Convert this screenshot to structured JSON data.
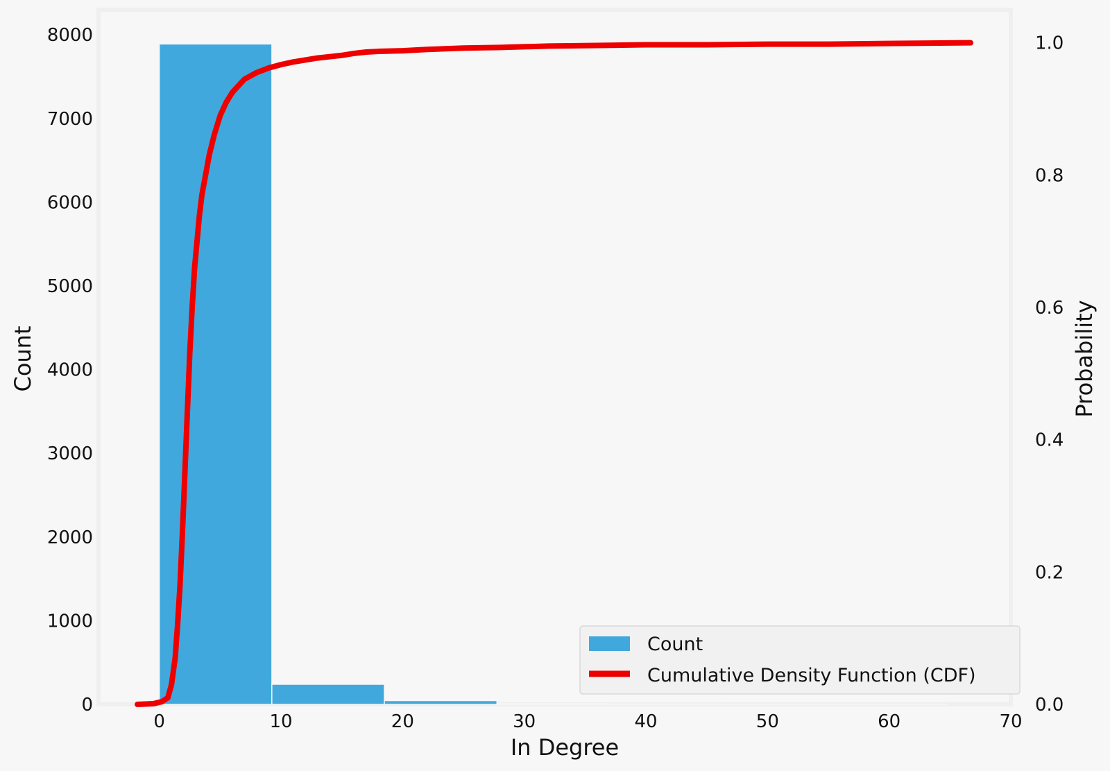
{
  "chart_data": {
    "type": "bar",
    "xlabel": "In Degree",
    "ylabel": "Count",
    "y2label": "Probability",
    "xlim": [
      -5,
      70
    ],
    "ylim": [
      0,
      8300
    ],
    "y2lim": [
      0,
      1.05
    ],
    "x_ticks": [
      0,
      10,
      20,
      30,
      40,
      50,
      60,
      70
    ],
    "y_ticks": [
      0,
      1000,
      2000,
      3000,
      4000,
      5000,
      6000,
      7000,
      8000
    ],
    "y2_ticks": [
      0.0,
      0.2,
      0.4,
      0.6,
      0.8,
      1.0
    ],
    "x_tick_labels": [
      "0",
      "10",
      "20",
      "30",
      "40",
      "50",
      "60",
      "70"
    ],
    "y_tick_labels": [
      "0",
      "1000",
      "2000",
      "3000",
      "4000",
      "5000",
      "6000",
      "7000",
      "8000"
    ],
    "y2_tick_labels": [
      "0.0",
      "0.2",
      "0.4",
      "0.6",
      "0.8",
      "1.0"
    ],
    "grid": false,
    "legend": "bottom-right",
    "series": [
      {
        "name": "Count",
        "kind": "histogram",
        "color": "#41a8dd",
        "bins": [
          {
            "x0": 0,
            "x1": 9.25,
            "value": 7890
          },
          {
            "x0": 9.25,
            "x1": 18.5,
            "value": 240
          },
          {
            "x0": 18.5,
            "x1": 27.75,
            "value": 45
          },
          {
            "x0": 27.75,
            "x1": 37,
            "value": 8
          },
          {
            "x0": 37,
            "x1": 46.25,
            "value": 3
          },
          {
            "x0": 46.25,
            "x1": 55.5,
            "value": 1
          },
          {
            "x0": 55.5,
            "x1": 64.75,
            "value": 1
          }
        ]
      },
      {
        "name": "Cumulative Density Function (CDF)",
        "kind": "line",
        "axis": "right",
        "color": "#ee0000",
        "x": [
          -1.8,
          -0.5,
          0.2,
          0.7,
          1.0,
          1.3,
          1.5,
          1.7,
          1.9,
          2.1,
          2.3,
          2.5,
          2.7,
          2.9,
          3.1,
          3.3,
          3.5,
          3.8,
          4.1,
          4.5,
          5.0,
          5.5,
          6.0,
          7.0,
          8.0,
          9.0,
          10.0,
          11.0,
          12.0,
          13.0,
          14.0,
          15.0,
          16.0,
          17.0,
          18.0,
          20.0,
          22.0,
          25.0,
          28.0,
          32.0,
          36.0,
          40.0,
          45.0,
          50.0,
          55.0,
          60.0,
          66.7
        ],
        "y": [
          0.0,
          0.001,
          0.004,
          0.01,
          0.03,
          0.07,
          0.12,
          0.18,
          0.26,
          0.35,
          0.44,
          0.53,
          0.6,
          0.66,
          0.7,
          0.74,
          0.77,
          0.8,
          0.83,
          0.86,
          0.89,
          0.91,
          0.925,
          0.945,
          0.955,
          0.962,
          0.967,
          0.971,
          0.974,
          0.977,
          0.979,
          0.981,
          0.984,
          0.986,
          0.987,
          0.988,
          0.99,
          0.992,
          0.993,
          0.995,
          0.996,
          0.997,
          0.997,
          0.998,
          0.998,
          0.999,
          1.0
        ]
      }
    ]
  },
  "legend": {
    "items": [
      {
        "label": "Count",
        "color": "#41a8dd"
      },
      {
        "label": "Cumulative Density Function (CDF)",
        "color": "#ee0000"
      }
    ]
  }
}
